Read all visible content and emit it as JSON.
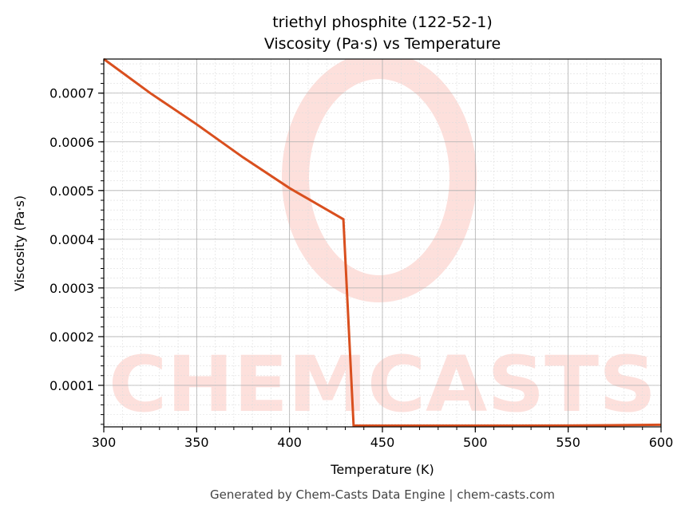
{
  "chart_data": {
    "type": "line",
    "title": "triethyl phosphite (122-52-1)",
    "subtitle": "Viscosity (Pa·s) vs Temperature",
    "xlabel": "Temperature (K)",
    "ylabel": "Viscosity (Pa·s)",
    "xlim": [
      300,
      600
    ],
    "ylim": [
      1.48e-05,
      0.00077
    ],
    "xticks": [
      300,
      350,
      400,
      450,
      500,
      550,
      600
    ],
    "xtick_labels": [
      "300",
      "350",
      "400",
      "450",
      "500",
      "550",
      "600"
    ],
    "yticks": [
      0.0001,
      0.0002,
      0.0003,
      0.0004,
      0.0005,
      0.0006,
      0.0007
    ],
    "ytick_labels": [
      "0.0001",
      "0.0002",
      "0.0003",
      "0.0004",
      "0.0005",
      "0.0006",
      "0.0007"
    ],
    "grid": true,
    "minor_grid": true,
    "series": [
      {
        "color": "#d94f1e",
        "x": [
          300,
          325,
          350,
          375,
          400,
          429,
          434.5,
          450,
          500,
          550,
          600
        ],
        "y": [
          0.00077,
          0.0007,
          0.000636,
          0.000568,
          0.000505,
          0.000441,
          1.48e-05,
          1.5e-05,
          1.6e-05,
          1.75e-05,
          1.9e-05
        ]
      }
    ],
    "watermark": "CHEMCASTS",
    "watermark_color": "#fde0dc"
  },
  "footer": "Generated by Chem-Casts Data Engine | chem-casts.com"
}
